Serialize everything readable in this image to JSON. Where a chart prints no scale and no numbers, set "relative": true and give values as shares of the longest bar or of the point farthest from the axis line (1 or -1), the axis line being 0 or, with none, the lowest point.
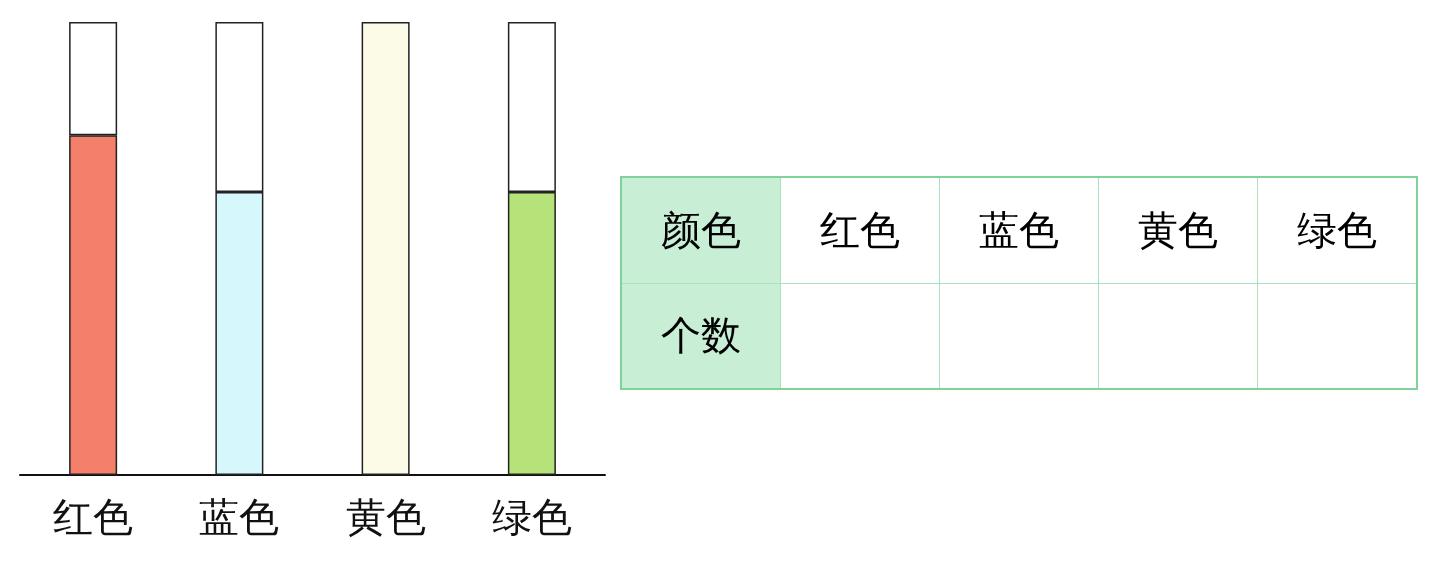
{
  "chart_data": [
    {
      "type": "bar",
      "relative": true,
      "stacked": true,
      "categories": [
        "红色",
        "蓝色",
        "黄色",
        "绿色"
      ],
      "series": [
        {
          "colors": [
            "#f47f6b",
            "#d6f7fb",
            "#fbfbe8",
            "#b6e27a"
          ],
          "values": [
            0.75,
            0.625,
            1,
            0.625
          ]
        },
        {
          "color": "#ffffff",
          "values": [
            0.25,
            0.375,
            0,
            0.375
          ]
        }
      ]
    },
    {
      "type": "other",
      "annotations": [
        "颜色",
        "红色",
        "蓝色",
        "黄色",
        "绿色",
        "个数"
      ]
    }
  ]
}
